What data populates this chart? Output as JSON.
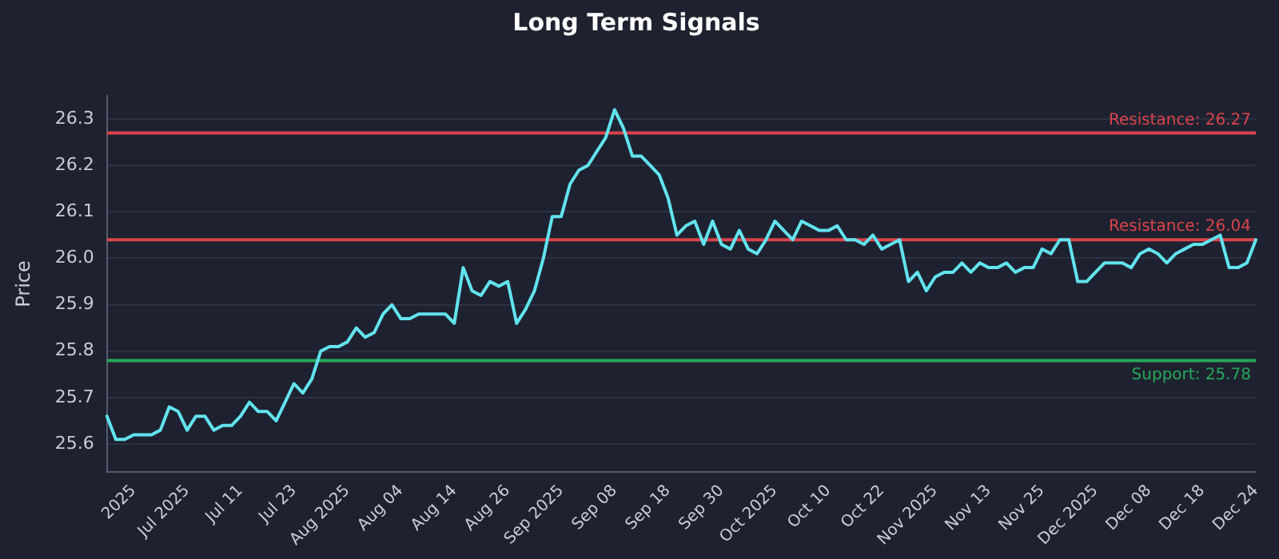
{
  "chart_data": {
    "type": "line",
    "title": "Long Term Signals",
    "ylabel": "Price",
    "categories": [
      null,
      null,
      null,
      "2025",
      null,
      null,
      null,
      null,
      null,
      "Jul 2025",
      null,
      null,
      null,
      null,
      null,
      "Jul 11",
      null,
      null,
      null,
      null,
      null,
      "Jul 23",
      null,
      null,
      null,
      null,
      null,
      "Aug 2025",
      null,
      null,
      null,
      null,
      null,
      "Aug 04",
      null,
      null,
      null,
      null,
      null,
      "Aug 14",
      null,
      null,
      null,
      null,
      null,
      "Aug 26",
      null,
      null,
      null,
      null,
      null,
      "Sep 2025",
      null,
      null,
      null,
      null,
      null,
      "Sep 08",
      null,
      null,
      null,
      null,
      null,
      "Sep 18",
      null,
      null,
      null,
      null,
      null,
      "Sep 30",
      null,
      null,
      null,
      null,
      null,
      "Oct 2025",
      null,
      null,
      null,
      null,
      null,
      "Oct 10",
      null,
      null,
      null,
      null,
      null,
      "Oct 22",
      null,
      null,
      null,
      null,
      null,
      "Nov 2025",
      null,
      null,
      null,
      null,
      null,
      "Nov 13",
      null,
      null,
      null,
      null,
      null,
      "Nov 25",
      null,
      null,
      null,
      null,
      null,
      "Dec 2025",
      null,
      null,
      null,
      null,
      null,
      "Dec 08",
      null,
      null,
      null,
      null,
      null,
      "Dec 18",
      null,
      null,
      null,
      null,
      null,
      "Dec 24"
    ],
    "series": [
      {
        "color": "#62e3ee",
        "values": [
          25.66,
          25.61,
          25.61,
          25.62,
          25.62,
          25.62,
          25.63,
          25.68,
          25.67,
          25.63,
          25.66,
          25.66,
          25.63,
          25.64,
          25.64,
          25.66,
          25.69,
          25.67,
          25.67,
          25.65,
          25.69,
          25.73,
          25.71,
          25.74,
          25.8,
          25.81,
          25.81,
          25.82,
          25.85,
          25.83,
          25.84,
          25.88,
          25.9,
          25.87,
          25.87,
          25.88,
          25.88,
          25.88,
          25.88,
          25.86,
          25.98,
          25.93,
          25.92,
          25.95,
          25.94,
          25.95,
          25.86,
          25.89,
          25.93,
          26.0,
          26.09,
          26.09,
          26.16,
          26.19,
          26.2,
          26.23,
          26.26,
          26.32,
          26.28,
          26.22,
          26.22,
          26.2,
          26.18,
          26.13,
          26.05,
          26.07,
          26.08,
          26.03,
          26.08,
          26.03,
          26.02,
          26.06,
          26.02,
          26.01,
          26.04,
          26.08,
          26.06,
          26.04,
          26.08,
          26.07,
          26.06,
          26.06,
          26.07,
          26.04,
          26.04,
          26.03,
          26.05,
          26.02,
          26.03,
          26.04,
          25.95,
          25.97,
          25.93,
          25.96,
          25.97,
          25.97,
          25.99,
          25.97,
          25.99,
          25.98,
          25.98,
          25.99,
          25.97,
          25.98,
          25.98,
          26.02,
          26.01,
          26.04,
          26.04,
          25.95,
          25.95,
          25.97,
          25.99,
          25.99,
          25.99,
          25.98,
          26.01,
          26.02,
          26.01,
          25.99,
          26.01,
          26.02,
          26.03,
          26.03,
          26.04,
          26.05,
          25.98,
          25.98,
          25.99,
          26.04
        ]
      }
    ],
    "ylim": [
      25.54,
      26.35
    ],
    "yticks": [
      25.6,
      25.7,
      25.8,
      25.9,
      {
        "value": 26,
        "label": "26.0"
      },
      26.1,
      26.2,
      26.3
    ],
    "ref_lines": [
      {
        "axis": "y",
        "value": 26.27,
        "label": "Resistance: 26.27",
        "color": "#d9434b"
      },
      {
        "axis": "y",
        "value": 26.04,
        "label": "Resistance: 26.04",
        "color": "#d9434b"
      },
      {
        "axis": "y",
        "value": 25.78,
        "label": "Support: 25.78",
        "color": "#27a85a"
      }
    ],
    "grid": "y",
    "legend": false,
    "marker": "none",
    "line_style": "solid"
  }
}
